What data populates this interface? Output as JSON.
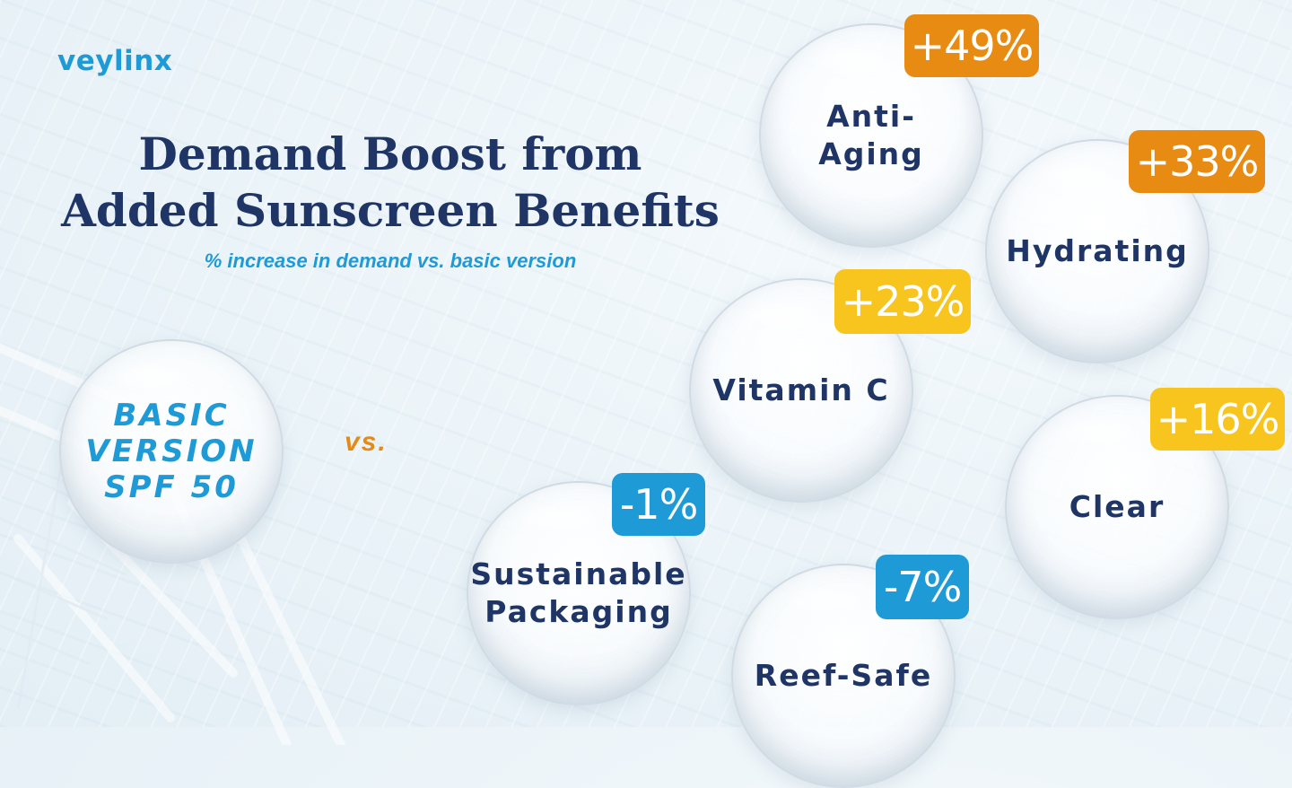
{
  "brand": {
    "logo_text": "veylinx"
  },
  "header": {
    "title_line1": "Demand Boost from",
    "title_line2": "Added Sunscreen Benefits",
    "subtitle": "% increase in demand vs. basic version"
  },
  "baseline": {
    "label": "BASIC\nVERSION\nSPF 50",
    "vs_label": "vs."
  },
  "colors": {
    "title": "#1f3566",
    "accent_blue": "#1e9ad6",
    "orange": "#e88b12",
    "yellow": "#f7c51e",
    "blue": "#1e9ad6"
  },
  "chart_data": {
    "type": "bubble",
    "title": "Demand Boost from Added Sunscreen Benefits",
    "subtitle": "% increase in demand vs. basic version",
    "baseline": "BASIC VERSION SPF 50",
    "unit": "%",
    "categories": [
      "Anti-Aging",
      "Hydrating",
      "Vitamin C",
      "Clear",
      "Sustainable Packaging",
      "Reef-Safe"
    ],
    "values": [
      49,
      33,
      23,
      16,
      -1,
      -7
    ],
    "items": [
      {
        "name": "Anti-Aging",
        "display": "Anti-\nAging",
        "value": 49,
        "label": "+49%",
        "color": "#e88b12"
      },
      {
        "name": "Hydrating",
        "display": "Hydrating",
        "value": 33,
        "label": "+33%",
        "color": "#e88b12"
      },
      {
        "name": "Vitamin C",
        "display": "Vitamin C",
        "value": 23,
        "label": "+23%",
        "color": "#f7c51e"
      },
      {
        "name": "Clear",
        "display": "Clear",
        "value": 16,
        "label": "+16%",
        "color": "#f7c51e"
      },
      {
        "name": "Sustainable Packaging",
        "display": "Sustainable\nPackaging",
        "value": -1,
        "label": "-1%",
        "color": "#1e9ad6"
      },
      {
        "name": "Reef-Safe",
        "display": "Reef-Safe",
        "value": -7,
        "label": "-7%",
        "color": "#1e9ad6"
      }
    ]
  }
}
